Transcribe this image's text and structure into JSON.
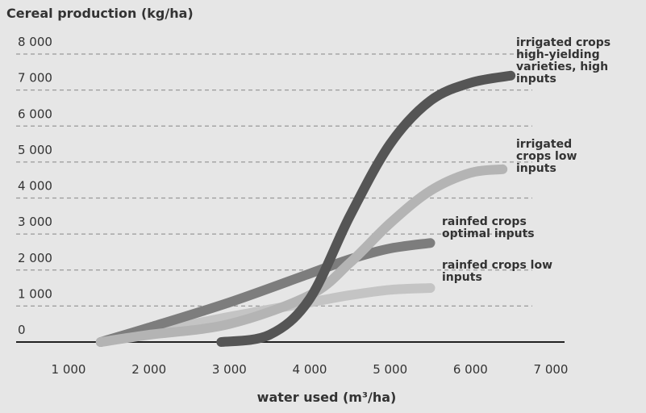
{
  "chart_data": {
    "type": "line",
    "title": "Cereal production (kg/ha)",
    "xlabel": "water used (m³/ha)",
    "xlim": [
      1000,
      7000
    ],
    "xticks": [
      {
        "value": 1000,
        "label": "1 000"
      },
      {
        "value": 2000,
        "label": "2 000"
      },
      {
        "value": 3000,
        "label": "3 000"
      },
      {
        "value": 4000,
        "label": "4 000"
      },
      {
        "value": 5000,
        "label": "5 000"
      },
      {
        "value": 6000,
        "label": "6 000"
      },
      {
        "value": 7000,
        "label": "7 000"
      }
    ],
    "ylim": [
      0,
      8000
    ],
    "yticks": [
      0,
      {
        "value": 1000,
        "label": "1 000"
      },
      {
        "value": 2000,
        "label": "2 000"
      },
      {
        "value": 3000,
        "label": "3 000"
      },
      {
        "value": 4000,
        "label": "4 000"
      },
      {
        "value": 5000,
        "label": "5 000"
      },
      {
        "value": 6000,
        "label": "6 000"
      },
      {
        "value": 7000,
        "label": "7 000"
      },
      {
        "value": 8000,
        "label": "8 000"
      }
    ],
    "grid": true,
    "series": [
      {
        "name": "irrigated crops high-yielding varieties, high inputs",
        "color": "#555555",
        "x": [
          2900,
          3500,
          4000,
          4500,
          5000,
          5500,
          6000,
          6500
        ],
        "values": [
          0,
          200,
          1200,
          3500,
          5500,
          6700,
          7200,
          7400
        ]
      },
      {
        "name": "irrigated crops low inputs",
        "color": "#b4b4b4",
        "x": [
          1400,
          2000,
          3000,
          4000,
          4500,
          5000,
          5500,
          6000,
          6400
        ],
        "values": [
          0,
          200,
          500,
          1300,
          2200,
          3300,
          4200,
          4700,
          4800
        ]
      },
      {
        "name": "rainfed crops optimal inputs",
        "color": "#7d7d7d",
        "x": [
          1400,
          2000,
          3000,
          4000,
          4500,
          5000,
          5500
        ],
        "values": [
          0,
          400,
          1100,
          1900,
          2300,
          2600,
          2750
        ]
      },
      {
        "name": "rainfed crops low inputs",
        "color": "#c4c4c4",
        "x": [
          1400,
          2000,
          3000,
          4000,
          4500,
          5000,
          5500
        ],
        "values": [
          0,
          250,
          700,
          1100,
          1300,
          1450,
          1500
        ]
      }
    ]
  }
}
